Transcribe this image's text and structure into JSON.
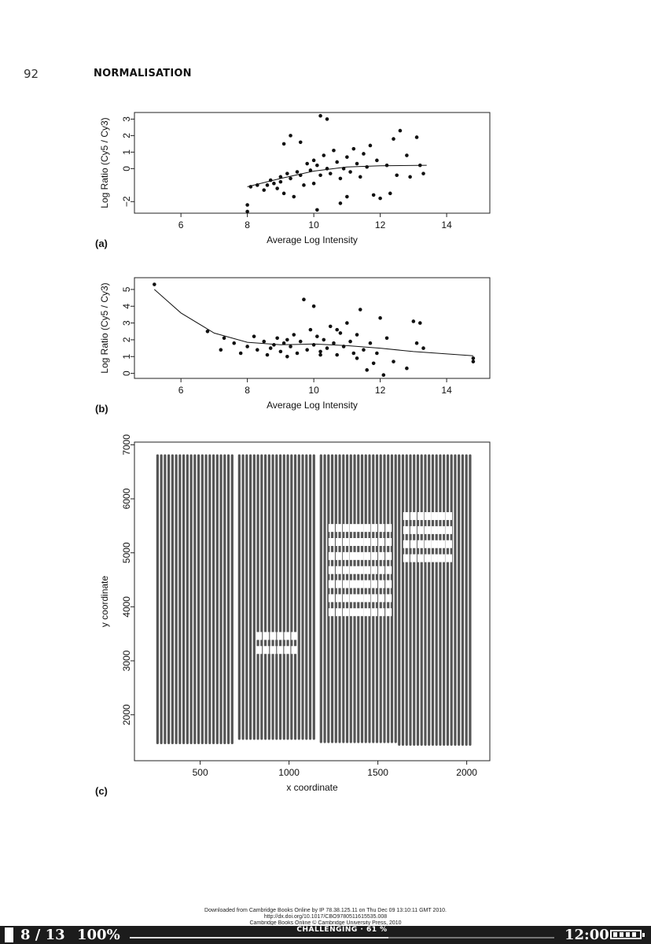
{
  "page": {
    "number": "92",
    "running_head": "NORMALISATION"
  },
  "chart_data": [
    {
      "type": "scatter",
      "panel_label": "(a)",
      "xlabel": "Average Log Intensity",
      "ylabel": "Log Ratio (Cy5 / Cy3)",
      "xlim": [
        4.6,
        15.3
      ],
      "ylim": [
        -2.7,
        3.4
      ],
      "xticks": [
        6,
        8,
        10,
        12,
        14
      ],
      "yticks": [
        -2,
        0,
        1,
        2,
        3
      ],
      "points": [
        [
          8.0,
          -2.6
        ],
        [
          8.0,
          -2.2
        ],
        [
          8.1,
          -1.1
        ],
        [
          8.3,
          -1.0
        ],
        [
          8.5,
          -1.3
        ],
        [
          8.6,
          -1.0
        ],
        [
          8.7,
          -0.7
        ],
        [
          8.8,
          -0.9
        ],
        [
          8.9,
          -1.2
        ],
        [
          9.0,
          -0.5
        ],
        [
          9.0,
          -0.8
        ],
        [
          9.1,
          -1.5
        ],
        [
          9.2,
          -0.3
        ],
        [
          9.3,
          -0.6
        ],
        [
          9.4,
          -1.7
        ],
        [
          9.5,
          -0.2
        ],
        [
          9.6,
          -0.4
        ],
        [
          9.7,
          -1.0
        ],
        [
          9.8,
          0.3
        ],
        [
          9.9,
          -0.1
        ],
        [
          10.0,
          0.5
        ],
        [
          10.0,
          -0.9
        ],
        [
          10.1,
          0.2
        ],
        [
          10.2,
          -0.4
        ],
        [
          10.3,
          0.8
        ],
        [
          10.4,
          0.0
        ],
        [
          10.5,
          -0.3
        ],
        [
          10.6,
          1.1
        ],
        [
          10.7,
          0.4
        ],
        [
          10.8,
          -0.6
        ],
        [
          10.9,
          0.0
        ],
        [
          11.0,
          0.7
        ],
        [
          11.1,
          -0.2
        ],
        [
          11.2,
          1.2
        ],
        [
          11.3,
          0.3
        ],
        [
          11.4,
          -0.5
        ],
        [
          11.5,
          0.9
        ],
        [
          11.6,
          0.1
        ],
        [
          11.7,
          1.4
        ],
        [
          11.8,
          -1.6
        ],
        [
          11.9,
          0.5
        ],
        [
          12.0,
          -1.8
        ],
        [
          12.2,
          0.2
        ],
        [
          12.4,
          1.8
        ],
        [
          12.5,
          -0.4
        ],
        [
          12.6,
          2.3
        ],
        [
          12.8,
          0.8
        ],
        [
          12.9,
          -0.5
        ],
        [
          13.1,
          1.9
        ],
        [
          13.2,
          0.2
        ],
        [
          9.1,
          1.5
        ],
        [
          9.3,
          2.0
        ],
        [
          10.2,
          3.2
        ],
        [
          10.4,
          3.0
        ],
        [
          9.6,
          1.6
        ],
        [
          11.0,
          -1.7
        ],
        [
          10.8,
          -2.1
        ],
        [
          10.1,
          -2.5
        ],
        [
          12.3,
          -1.5
        ],
        [
          13.3,
          -0.3
        ]
      ],
      "loess": [
        [
          8.0,
          -1.1
        ],
        [
          9.0,
          -0.6
        ],
        [
          10.0,
          -0.15
        ],
        [
          11.0,
          0.1
        ],
        [
          12.0,
          0.17
        ],
        [
          13.4,
          0.2
        ]
      ]
    },
    {
      "type": "scatter",
      "panel_label": "(b)",
      "xlabel": "Average Log Intensity",
      "ylabel": "Log Ratio (Cy5 / Cy3)",
      "xlim": [
        4.6,
        15.3
      ],
      "ylim": [
        -0.3,
        5.7
      ],
      "xticks": [
        6,
        8,
        10,
        12,
        14
      ],
      "yticks": [
        0,
        1,
        2,
        3,
        4,
        5
      ],
      "points": [
        [
          5.2,
          5.3
        ],
        [
          6.8,
          2.5
        ],
        [
          7.2,
          1.4
        ],
        [
          7.3,
          2.1
        ],
        [
          7.6,
          1.8
        ],
        [
          7.8,
          1.2
        ],
        [
          8.0,
          1.6
        ],
        [
          8.2,
          2.2
        ],
        [
          8.3,
          1.4
        ],
        [
          8.5,
          1.9
        ],
        [
          8.6,
          1.1
        ],
        [
          8.8,
          1.7
        ],
        [
          8.9,
          2.1
        ],
        [
          9.0,
          1.3
        ],
        [
          9.1,
          1.8
        ],
        [
          9.2,
          1.0
        ],
        [
          9.3,
          1.6
        ],
        [
          9.4,
          2.3
        ],
        [
          9.5,
          1.2
        ],
        [
          9.6,
          1.9
        ],
        [
          9.7,
          4.4
        ],
        [
          9.8,
          1.4
        ],
        [
          9.9,
          2.6
        ],
        [
          10.0,
          4.0
        ],
        [
          10.0,
          1.7
        ],
        [
          10.1,
          2.2
        ],
        [
          10.2,
          1.3
        ],
        [
          10.3,
          2.0
        ],
        [
          10.4,
          1.5
        ],
        [
          10.5,
          2.8
        ],
        [
          10.6,
          1.8
        ],
        [
          10.7,
          1.1
        ],
        [
          10.8,
          2.4
        ],
        [
          10.9,
          1.6
        ],
        [
          11.0,
          3.0
        ],
        [
          11.1,
          1.9
        ],
        [
          11.2,
          1.2
        ],
        [
          11.3,
          2.3
        ],
        [
          11.4,
          3.8
        ],
        [
          11.5,
          1.4
        ],
        [
          11.6,
          0.2
        ],
        [
          11.7,
          1.8
        ],
        [
          11.8,
          0.6
        ],
        [
          11.9,
          1.2
        ],
        [
          12.0,
          3.3
        ],
        [
          12.1,
          -0.1
        ],
        [
          12.2,
          2.1
        ],
        [
          12.4,
          0.7
        ],
        [
          12.8,
          0.3
        ],
        [
          13.0,
          3.1
        ],
        [
          13.1,
          1.8
        ],
        [
          13.2,
          3.0
        ],
        [
          13.3,
          1.5
        ],
        [
          14.8,
          0.9
        ],
        [
          14.8,
          0.7
        ],
        [
          9.2,
          2.0
        ],
        [
          10.2,
          1.1
        ],
        [
          10.7,
          2.6
        ],
        [
          11.3,
          0.9
        ],
        [
          8.7,
          1.5
        ]
      ],
      "loess": [
        [
          5.2,
          5.0
        ],
        [
          6.0,
          3.6
        ],
        [
          7.0,
          2.4
        ],
        [
          8.0,
          1.85
        ],
        [
          9.0,
          1.7
        ],
        [
          10.0,
          1.75
        ],
        [
          11.0,
          1.65
        ],
        [
          12.0,
          1.5
        ],
        [
          13.0,
          1.3
        ],
        [
          14.8,
          1.05
        ]
      ]
    },
    {
      "type": "scatter",
      "panel_label": "(c)",
      "xlabel": "x coordinate",
      "ylabel": "y coordinate",
      "xlim": [
        130,
        2130
      ],
      "ylim": [
        1150,
        7050
      ],
      "xticks": [
        500,
        1000,
        1500,
        2000
      ],
      "yticks": [
        2000,
        3000,
        4000,
        5000,
        6000,
        7000
      ],
      "grid_blocks": [
        {
          "x": [
            260,
            680
          ],
          "y": [
            1480,
            6800
          ]
        },
        {
          "x": [
            720,
            1140
          ],
          "y": [
            1560,
            6800
          ]
        },
        {
          "x": [
            1180,
            1600
          ],
          "y": [
            1500,
            6800
          ]
        },
        {
          "x": [
            1620,
            2030
          ],
          "y": [
            1450,
            6800
          ]
        }
      ],
      "column_spacing": 21,
      "dark_color": "#555555",
      "light_color": "#a8a8a8",
      "gap_regions": [
        {
          "x": [
            1240,
            1560
          ],
          "y": [
            3900,
            5600
          ]
        },
        {
          "x": [
            1660,
            1920
          ],
          "y": [
            4900,
            5800
          ]
        },
        {
          "x": [
            830,
            1050
          ],
          "y": [
            3200,
            3600
          ]
        }
      ]
    }
  ],
  "footer": {
    "line1": "Downloaded from Cambridge Books Online by IP 78.38.125.11 on Thu Dec 09 13:10:11 GMT 2010.",
    "line2": "http://dx.doi.org/10.1017/CBO9780511615535.008",
    "line3": "Cambridge Books Online © Cambridge University Press, 2010"
  },
  "status_bar": {
    "pages": "8 / 13",
    "zoom": "100%",
    "title": "CHALLENGING · 61 %",
    "progress": 0.61,
    "time": "12:00",
    "battery_bars": 4
  }
}
